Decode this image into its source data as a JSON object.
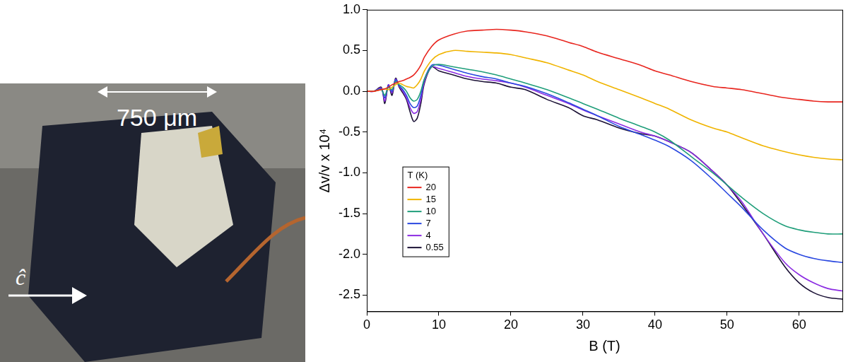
{
  "photo": {
    "scale_label": "750 μm",
    "axis_label": "ĉ"
  },
  "chart_data": {
    "type": "line",
    "x_label": "B (T)",
    "y_label": "Δv/v x 10⁴",
    "xlim": [
      0,
      66
    ],
    "xticks": [
      0,
      10,
      20,
      30,
      40,
      50,
      60
    ],
    "ylim": [
      -2.7,
      1.0
    ],
    "yticks": [
      {
        "value": -2.5,
        "label": "-2.5"
      },
      {
        "value": -2,
        "label": "-2.0"
      },
      -1.5,
      {
        "value": -1,
        "label": "-1.0"
      },
      -0.5,
      {
        "value": 0,
        "label": "0.0"
      },
      0.5,
      {
        "value": 1,
        "label": "1.0"
      }
    ],
    "grid": false,
    "legend": "left",
    "legend_title": "T (K)",
    "x": [
      0,
      1,
      2,
      2.5,
      3,
      3.5,
      4,
      4.5,
      5,
      5.5,
      6,
      6.5,
      7,
      7.5,
      8,
      9,
      10,
      12,
      14,
      16,
      18,
      20,
      22,
      25,
      28,
      30,
      32,
      35,
      38,
      40,
      42,
      45,
      48,
      50,
      52,
      55,
      58,
      60,
      62,
      64,
      66
    ],
    "series": [
      {
        "name": "20",
        "color": "#e8261f",
        "values": [
          0,
          0,
          0.02,
          0.03,
          0.05,
          0.08,
          0.1,
          0.12,
          0.13,
          0.15,
          0.17,
          0.2,
          0.25,
          0.32,
          0.42,
          0.55,
          0.63,
          0.7,
          0.74,
          0.75,
          0.76,
          0.75,
          0.73,
          0.68,
          0.6,
          0.55,
          0.48,
          0.4,
          0.32,
          0.25,
          0.2,
          0.12,
          0.06,
          0.04,
          0.02,
          -0.03,
          -0.08,
          -0.1,
          -0.12,
          -0.13,
          -0.13
        ]
      },
      {
        "name": "15",
        "color": "#f0b400",
        "values": [
          0,
          0,
          0.02,
          0.03,
          0.02,
          0.05,
          0.08,
          0.1,
          0.08,
          0.06,
          0.05,
          0.04,
          0.08,
          0.15,
          0.25,
          0.38,
          0.45,
          0.5,
          0.49,
          0.48,
          0.47,
          0.45,
          0.41,
          0.35,
          0.26,
          0.2,
          0.12,
          0.02,
          -0.08,
          -0.15,
          -0.22,
          -0.35,
          -0.45,
          -0.5,
          -0.57,
          -0.67,
          -0.74,
          -0.78,
          -0.81,
          -0.83,
          -0.84
        ]
      },
      {
        "name": "10",
        "color": "#1f9e7a",
        "values": [
          0,
          0,
          0.02,
          -0.05,
          0.05,
          0.02,
          0.12,
          0.08,
          0.05,
          0,
          -0.08,
          -0.12,
          -0.1,
          0,
          0.15,
          0.3,
          0.33,
          0.3,
          0.27,
          0.24,
          0.2,
          0.15,
          0.1,
          0.02,
          -0.08,
          -0.15,
          -0.22,
          -0.33,
          -0.43,
          -0.5,
          -0.6,
          -0.8,
          -1.0,
          -1.15,
          -1.3,
          -1.5,
          -1.65,
          -1.7,
          -1.73,
          -1.75,
          -1.75
        ]
      },
      {
        "name": "7",
        "color": "#2a48e0",
        "values": [
          0,
          0,
          0.03,
          -0.08,
          0.07,
          0,
          0.14,
          0.07,
          0.02,
          -0.05,
          -0.15,
          -0.2,
          -0.18,
          -0.05,
          0.15,
          0.32,
          0.32,
          0.27,
          0.22,
          0.18,
          0.15,
          0.1,
          0.06,
          -0.03,
          -0.14,
          -0.22,
          -0.3,
          -0.43,
          -0.53,
          -0.6,
          -0.68,
          -0.85,
          -1.08,
          -1.25,
          -1.42,
          -1.7,
          -1.92,
          -2.0,
          -2.05,
          -2.08,
          -2.1
        ]
      },
      {
        "name": "4",
        "color": "#8b2be2",
        "values": [
          0,
          0,
          0.04,
          -0.12,
          0.08,
          -0.02,
          0.15,
          0.06,
          0,
          -0.08,
          -0.2,
          -0.27,
          -0.25,
          -0.1,
          0.12,
          0.3,
          0.28,
          0.23,
          0.18,
          0.15,
          0.13,
          0.1,
          0.05,
          -0.05,
          -0.15,
          -0.23,
          -0.3,
          -0.4,
          -0.5,
          -0.55,
          -0.62,
          -0.75,
          -0.98,
          -1.15,
          -1.35,
          -1.75,
          -2.1,
          -2.25,
          -2.35,
          -2.42,
          -2.45
        ]
      },
      {
        "name": "0.55",
        "color": "#1c1236",
        "values": [
          0,
          0,
          0.05,
          -0.15,
          0.08,
          -0.05,
          0.16,
          0.05,
          -0.02,
          -0.1,
          -0.25,
          -0.37,
          -0.33,
          -0.15,
          0.1,
          0.3,
          0.25,
          0.2,
          0.15,
          0.12,
          0.1,
          0.05,
          0.02,
          -0.1,
          -0.2,
          -0.3,
          -0.35,
          -0.45,
          -0.52,
          -0.55,
          -0.62,
          -0.75,
          -0.98,
          -1.15,
          -1.38,
          -1.75,
          -2.15,
          -2.35,
          -2.47,
          -2.53,
          -2.55
        ]
      }
    ]
  }
}
